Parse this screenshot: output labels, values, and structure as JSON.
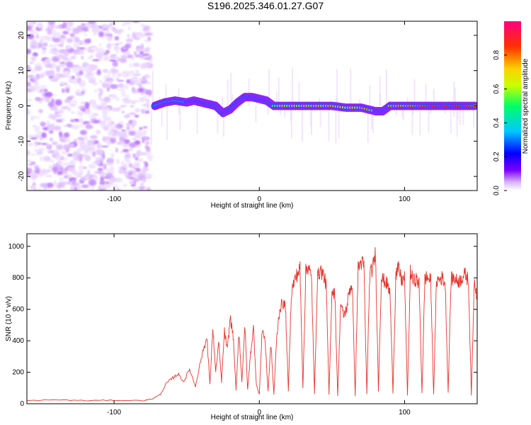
{
  "title": "S196.2025.346.01.27.G07",
  "chart_data": [
    {
      "type": "heatmap",
      "xlabel": "Height of straight line (km)",
      "ylabel": "Frequency (Hz)",
      "xlim": [
        -160,
        150
      ],
      "ylim": [
        -24,
        24
      ],
      "x_ticks": [
        -100,
        0,
        100
      ],
      "y_ticks": [
        -20,
        -10,
        0,
        10,
        20
      ],
      "colorbar": {
        "label": "Normalized spectral amplitude",
        "range": [
          0,
          1
        ],
        "ticks": [
          "0.0",
          "0.2",
          "0.4",
          "0.6",
          "0.8"
        ],
        "colormap": [
          "#ffffff",
          "#d9b3ff",
          "#7b00ff",
          "#0000ff",
          "#00c8ff",
          "#00ff66",
          "#c8ff00",
          "#ffd000",
          "#ff3000",
          "#ff0080"
        ]
      },
      "noise_region_x": [
        -160,
        -75
      ],
      "ridge": {
        "x": [
          -72,
          -65,
          -58,
          -50,
          -45,
          -40,
          -35,
          -30,
          -25,
          -20,
          -15,
          -10,
          -5,
          0,
          5,
          10,
          20,
          30,
          40,
          50,
          60,
          70,
          80,
          85,
          90,
          100,
          110,
          120,
          130,
          140,
          150
        ],
        "freq": [
          0,
          1,
          1.5,
          1,
          1.5,
          1,
          0.5,
          0,
          -2,
          -1,
          1,
          2.5,
          2.5,
          2,
          1.5,
          0,
          0,
          0,
          0,
          0,
          -0.5,
          -0.5,
          -1.5,
          -1.5,
          0,
          0,
          0,
          0,
          0,
          0,
          0
        ],
        "amplitude": [
          0.5,
          0.45,
          0.5,
          0.45,
          0.5,
          0.45,
          0.4,
          0.75,
          0.55,
          0.55,
          0.5,
          0.55,
          0.55,
          0.6,
          0.55,
          0.6,
          0.7,
          0.7,
          0.75,
          0.8,
          0.7,
          0.8,
          0.8,
          0.75,
          0.8,
          0.8,
          0.85,
          0.9,
          0.9,
          0.9,
          0.85
        ]
      }
    },
    {
      "type": "line",
      "xlabel": "Height of straight line (km)",
      "ylabel": "SNR (10 * v/v)",
      "xlim": [
        -160,
        150
      ],
      "ylim": [
        0,
        1080
      ],
      "x_ticks": [
        -100,
        0,
        100
      ],
      "y_ticks": [
        0,
        200,
        400,
        600,
        800,
        1000
      ],
      "color": "#e8332a",
      "series": [
        {
          "name": "SNR",
          "x": [
            -160,
            -140,
            -120,
            -100,
            -80,
            -74,
            -68,
            -64,
            -60,
            -56,
            -52,
            -48,
            -44,
            -40,
            -36,
            -34,
            -32,
            -30,
            -28,
            -26,
            -24,
            -22,
            -20,
            -18,
            -16,
            -14,
            -12,
            -10,
            -8,
            -6,
            -4,
            -2,
            0,
            2,
            4,
            6,
            8,
            10,
            12,
            14,
            16,
            18,
            20,
            22,
            24,
            26,
            28,
            30,
            32,
            34,
            36,
            38,
            40,
            42,
            44,
            46,
            48,
            50,
            52,
            54,
            56,
            58,
            60,
            62,
            64,
            66,
            68,
            70,
            72,
            74,
            76,
            78,
            80,
            82,
            84,
            86,
            88,
            90,
            92,
            94,
            96,
            98,
            100,
            102,
            104,
            106,
            108,
            110,
            112,
            114,
            116,
            118,
            120,
            122,
            124,
            126,
            128,
            130,
            132,
            134,
            136,
            138,
            140,
            142,
            144,
            146,
            148,
            150
          ],
          "values": [
            20,
            25,
            20,
            22,
            20,
            30,
            60,
            130,
            160,
            190,
            140,
            220,
            110,
            290,
            420,
            120,
            480,
            200,
            390,
            140,
            460,
            340,
            550,
            430,
            90,
            450,
            140,
            500,
            90,
            320,
            480,
            120,
            60,
            480,
            400,
            80,
            380,
            60,
            420,
            600,
            640,
            620,
            80,
            700,
            780,
            820,
            860,
            100,
            840,
            880,
            780,
            60,
            800,
            850,
            820,
            760,
            60,
            720,
            700,
            50,
            640,
            560,
            600,
            720,
            760,
            50,
            860,
            900,
            880,
            60,
            820,
            860,
            960,
            80,
            800,
            780,
            760,
            700,
            70,
            820,
            860,
            780,
            800,
            50,
            840,
            780,
            790,
            760,
            70,
            800,
            800,
            780,
            60,
            780,
            790,
            800,
            760,
            70,
            790,
            800,
            780,
            780,
            810,
            820,
            780,
            50,
            800,
            680
          ]
        }
      ]
    }
  ]
}
